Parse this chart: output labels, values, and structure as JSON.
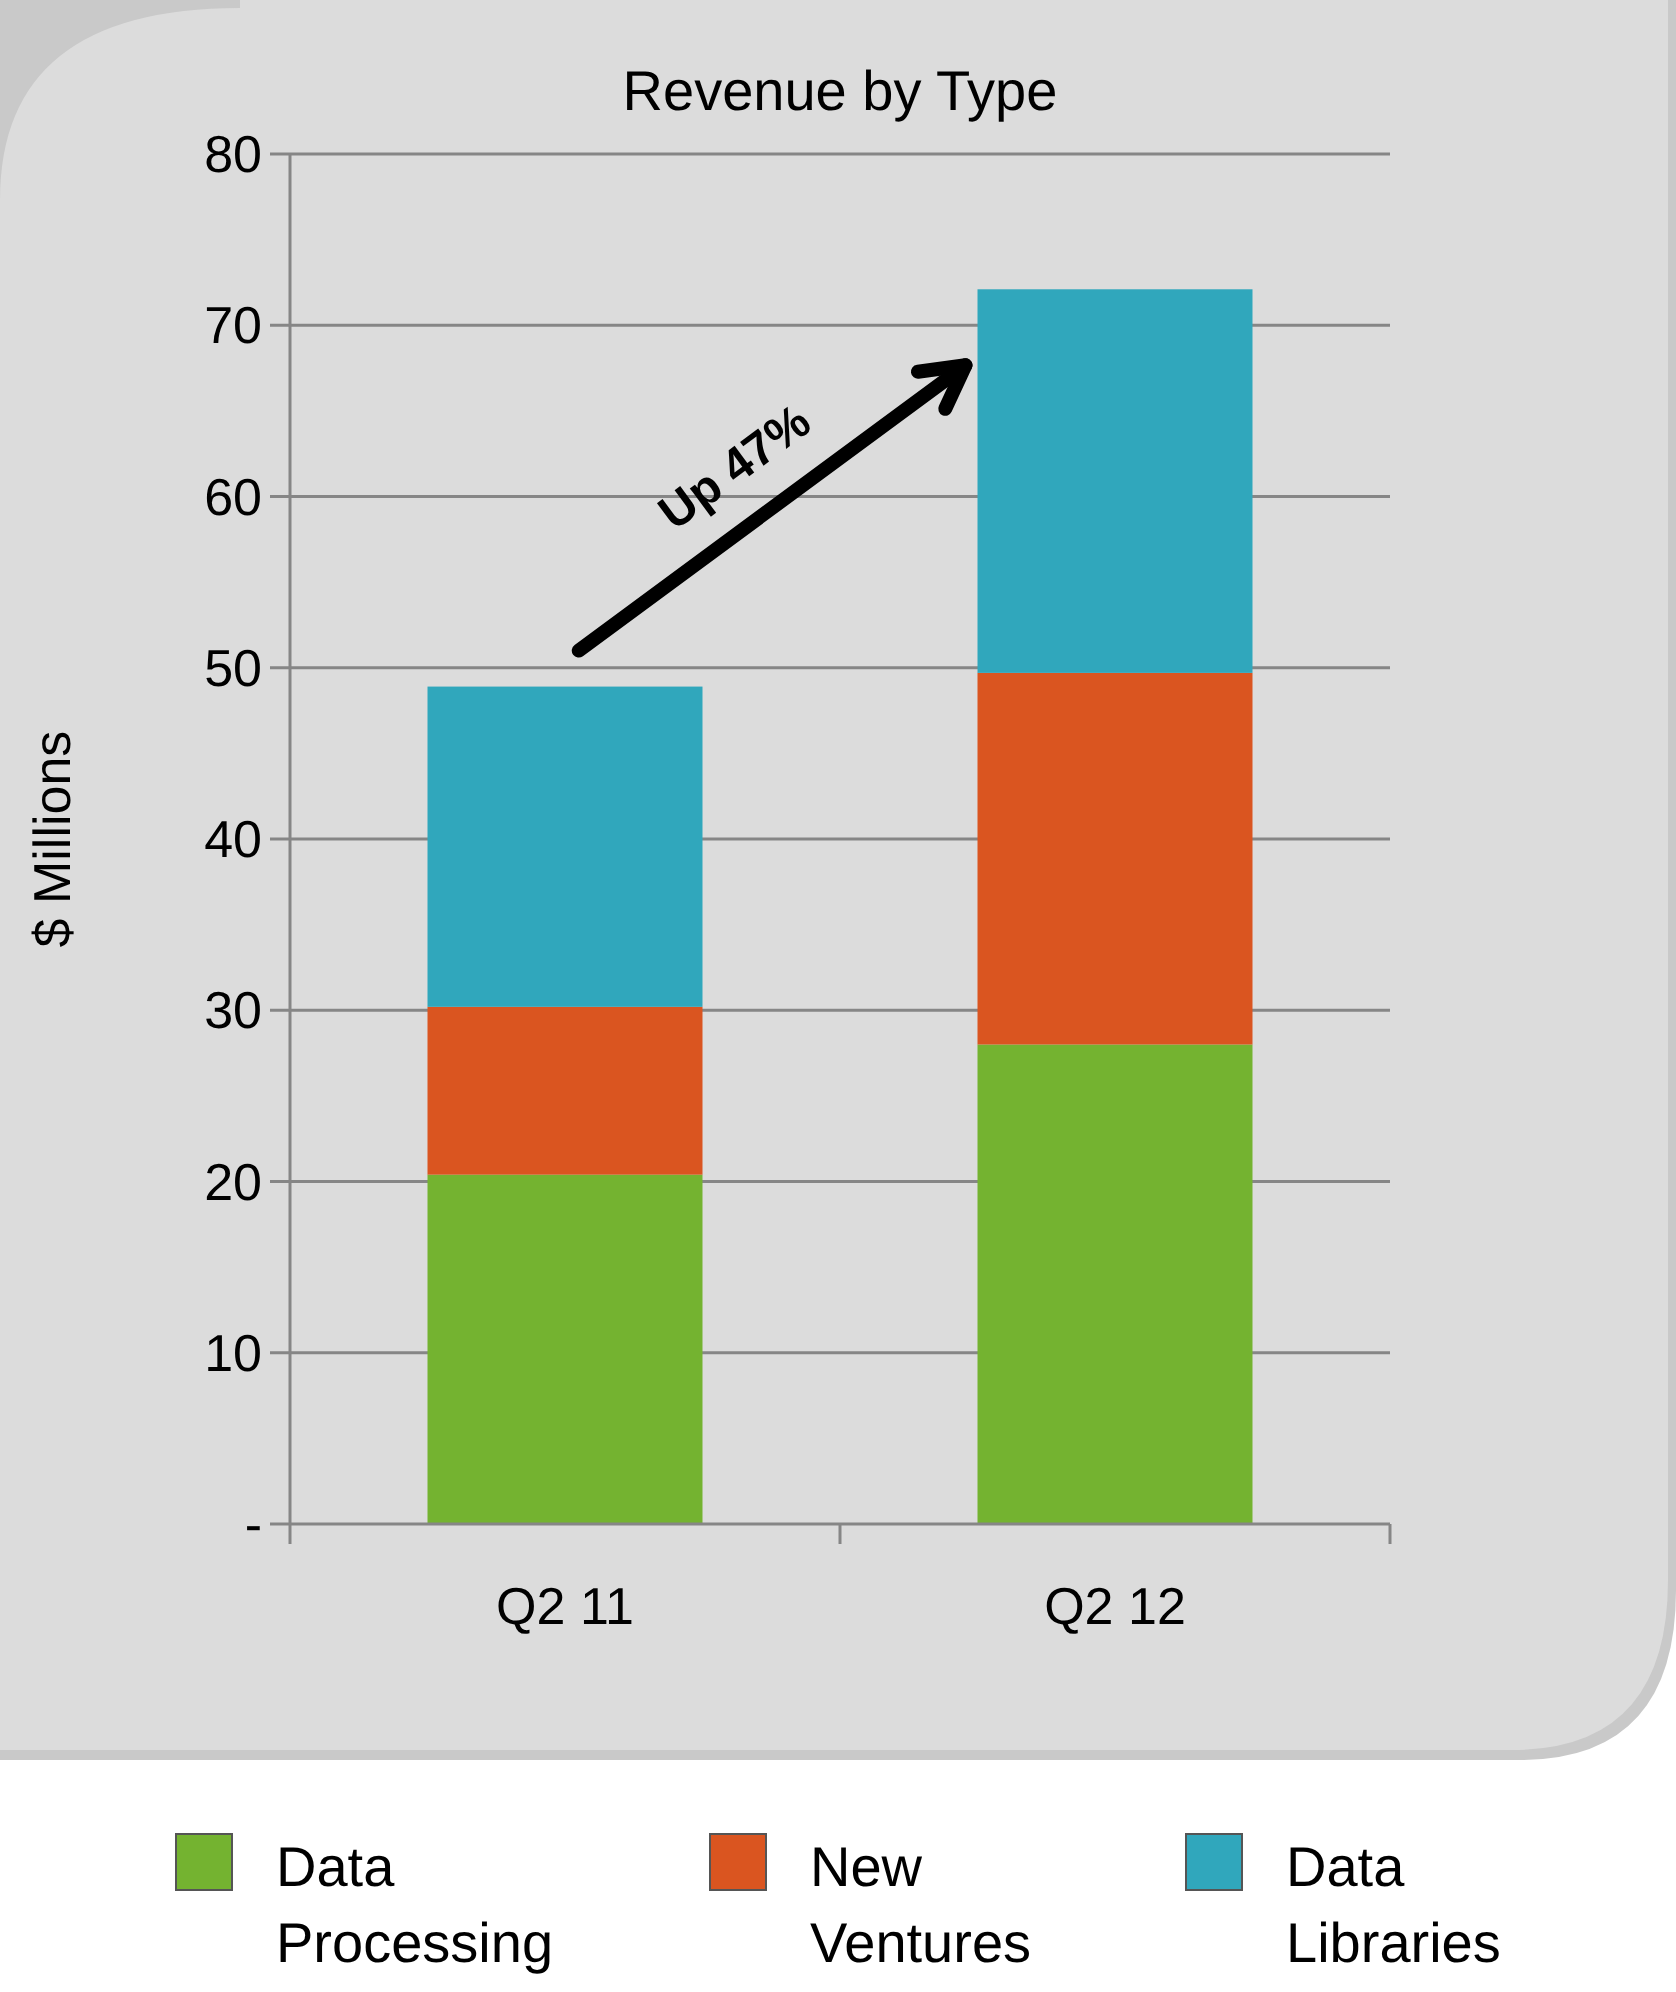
{
  "chart_data": {
    "type": "bar",
    "title": "Revenue by Type",
    "ylabel": "$ Millions",
    "categories": [
      "Q2 11",
      "Q2 12"
    ],
    "stacked": true,
    "series": [
      {
        "name": "Data Processing",
        "color": "#74b330",
        "values": [
          20.4,
          28.0
        ]
      },
      {
        "name": "New Ventures",
        "color": "#da5520",
        "values": [
          9.8,
          21.7
        ]
      },
      {
        "name": "Data Libraries",
        "color": "#30a7bc",
        "values": [
          18.7,
          22.4
        ]
      }
    ],
    "ylim": [
      0,
      80
    ],
    "yticks": [
      {
        "value": 0,
        "label": "-"
      },
      10,
      20,
      30,
      40,
      50,
      60,
      70,
      80
    ],
    "grid": "y",
    "legend": "bottom",
    "annotations": [
      "Up 47%"
    ]
  }
}
